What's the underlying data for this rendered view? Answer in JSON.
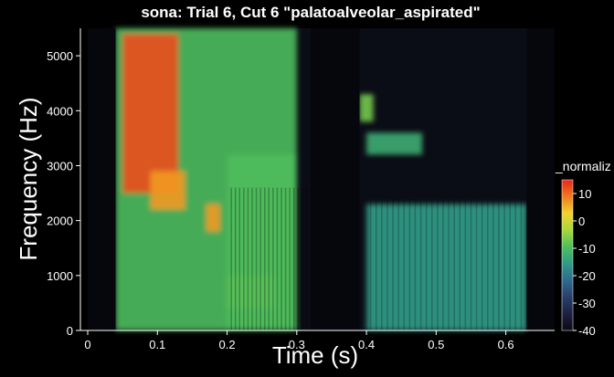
{
  "chart_data": {
    "type": "heatmap",
    "title": "sona: Trial 6, Cut 6 \"palatoalveolar_aspirated\"",
    "xlabel": "Time (s)",
    "ylabel": "Frequency (Hz)",
    "xlim": [
      0,
      0.67
    ],
    "ylim": [
      0,
      5500
    ],
    "x_ticks": [
      0,
      0.1,
      0.2,
      0.3,
      0.4,
      0.5,
      0.6
    ],
    "x_tick_labels": [
      "0",
      "0.1",
      "0.2",
      "0.3",
      "0.4",
      "0.5",
      "0.6"
    ],
    "y_ticks": [
      0,
      1000,
      2000,
      3000,
      4000,
      5000
    ],
    "y_tick_labels": [
      "0",
      "1000",
      "2000",
      "3000",
      "4000",
      "5000"
    ],
    "colorbar": {
      "label": "_normaliz",
      "range": [
        -40,
        15
      ],
      "ticks": [
        10,
        0,
        -10,
        -20,
        -30,
        -40
      ],
      "tick_labels": [
        "10",
        "0",
        "-10",
        "-20",
        "-30",
        "-40"
      ],
      "colormap": [
        "#0a0a12",
        "#1c2140",
        "#2b3f6a",
        "#2e6b8f",
        "#2f9b8a",
        "#4fbf5a",
        "#a8d83a",
        "#f2d22e",
        "#f07a1e",
        "#e8261a"
      ]
    },
    "regions": [
      {
        "t": [
          0.04,
          0.3
        ],
        "f": [
          0,
          5500
        ],
        "level": 0.55
      },
      {
        "t": [
          0.05,
          0.13
        ],
        "f": [
          2500,
          5400
        ],
        "level": 0.95
      },
      {
        "t": [
          0.09,
          0.14
        ],
        "f": [
          2200,
          2900
        ],
        "level": 0.85
      },
      {
        "t": [
          0.17,
          0.19
        ],
        "f": [
          1800,
          2300
        ],
        "level": 0.85
      },
      {
        "t": [
          0.2,
          0.27
        ],
        "f": [
          400,
          1000
        ],
        "level": 0.7
      },
      {
        "t": [
          0.2,
          0.3
        ],
        "f": [
          0,
          3200
        ],
        "level": 0.55
      },
      {
        "t": [
          0.4,
          0.63
        ],
        "f": [
          0,
          2300
        ],
        "level": 0.45
      },
      {
        "t": [
          0.39,
          0.41
        ],
        "f": [
          3800,
          4300
        ],
        "level": 0.6
      },
      {
        "t": [
          0.4,
          0.48
        ],
        "f": [
          3200,
          3600
        ],
        "level": 0.5
      }
    ],
    "silent_segments": [
      [
        0,
        0.04
      ],
      [
        0.32,
        0.39
      ],
      [
        0.63,
        0.67
      ]
    ]
  }
}
